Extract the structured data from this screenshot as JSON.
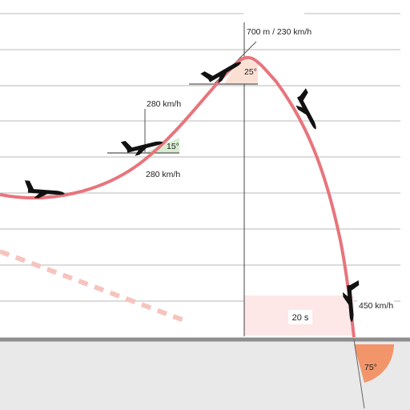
{
  "diagram": {
    "labels": {
      "climb_speed_top": "280 km/h",
      "climb_speed_bottom": "280 km/h",
      "climb_angle": "15°",
      "apex": "700 m / 230 km/h",
      "apex_angle": "25°",
      "duration": "20 s",
      "impact_speed": "450 km/h",
      "impact_angle": "75°"
    },
    "colors": {
      "flight_path": "#e8747c",
      "dashed_path": "#f6c4bd",
      "climb_wedge": "#d8ecd2",
      "apex_wedge": "#fde0d4",
      "duration_band": "#fde7e7",
      "impact_wedge": "#f2956a",
      "ground": "#e9e9e9",
      "ground_line": "#8e8e8e",
      "aircraft": "#111111"
    },
    "icons": {
      "aircraft": "airplane-silhouette-icon"
    }
  }
}
